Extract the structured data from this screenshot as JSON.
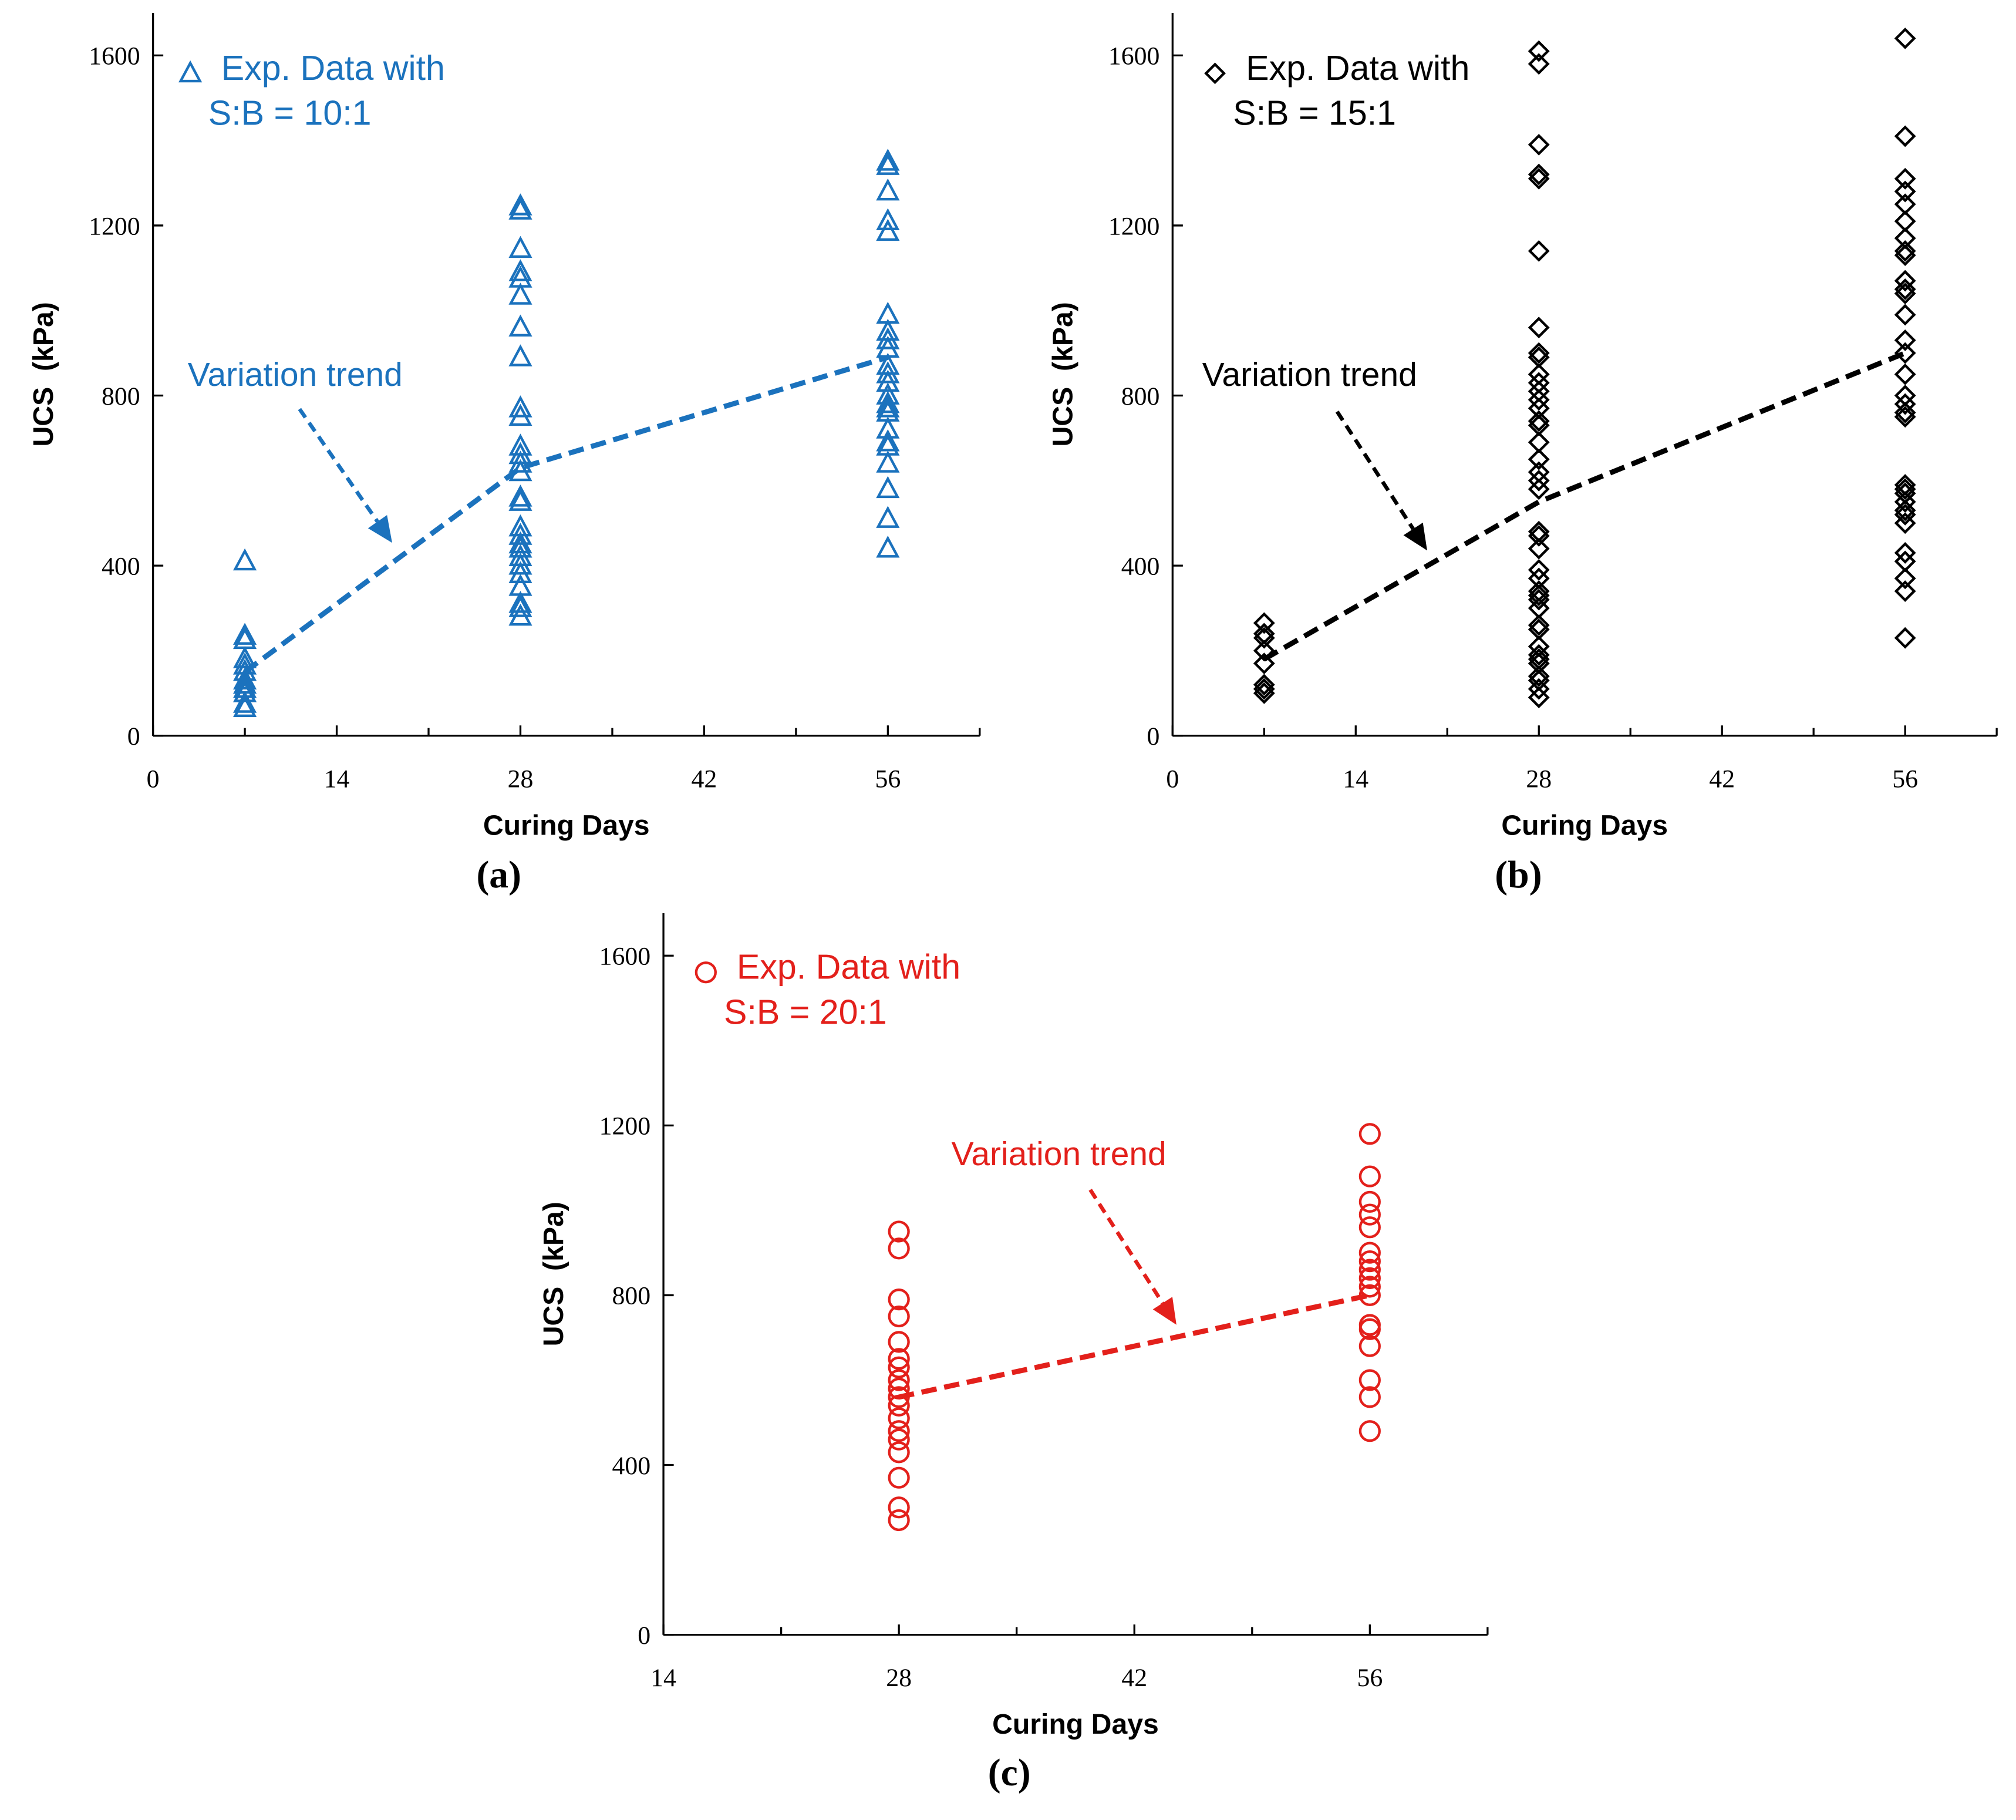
{
  "chart_data": [
    {
      "type": "scatter",
      "caption": "(a)",
      "xlabel": "Curing Days",
      "ylabel": "UCS  (kPa)",
      "xlim": [
        0,
        63
      ],
      "ylim": [
        0,
        1700
      ],
      "xticks": [
        0,
        14,
        28,
        42,
        56
      ],
      "xminorticks": [
        7,
        21,
        35,
        49,
        63
      ],
      "yticks": [
        0,
        400,
        800,
        1200,
        1600
      ],
      "series": [
        {
          "name": "Exp. Data with S:B = 10:1",
          "color": "#1b72bd",
          "marker": "triangle",
          "x": [
            7,
            7,
            7,
            7,
            7,
            7,
            7,
            7,
            7,
            7,
            7,
            7,
            28,
            28,
            28,
            28,
            28,
            28,
            28,
            28,
            28,
            28,
            28,
            28,
            28,
            28,
            28,
            28,
            28,
            28,
            28,
            28,
            28,
            28,
            28,
            28,
            28,
            28,
            28,
            56,
            56,
            56,
            56,
            56,
            56,
            56,
            56,
            56,
            56,
            56,
            56,
            56,
            56,
            56,
            56,
            56,
            56,
            56,
            56,
            56,
            56,
            56
          ],
          "values": [
            410,
            235,
            225,
            180,
            165,
            150,
            130,
            120,
            110,
            100,
            75,
            65,
            1245,
            1235,
            1145,
            1090,
            1075,
            1035,
            960,
            890,
            770,
            750,
            680,
            660,
            640,
            620,
            560,
            550,
            490,
            470,
            450,
            440,
            420,
            400,
            380,
            350,
            310,
            300,
            280,
            1350,
            1340,
            1280,
            1210,
            1185,
            990,
            950,
            930,
            910,
            870,
            850,
            830,
            800,
            780,
            770,
            760,
            720,
            690,
            680,
            640,
            580,
            510,
            440
          ]
        }
      ],
      "trend": {
        "color": "#1b72bd",
        "x": [
          7,
          28,
          56
        ],
        "values": [
          150,
          630,
          890
        ]
      },
      "annotation": "Variation trend"
    },
    {
      "type": "scatter",
      "caption": "(b)",
      "xlabel": "Curing Days",
      "ylabel": "UCS  (kPa)",
      "xlim": [
        0,
        63
      ],
      "ylim": [
        0,
        1700
      ],
      "xticks": [
        0,
        14,
        28,
        42,
        56
      ],
      "xminorticks": [
        7,
        21,
        35,
        49,
        63
      ],
      "yticks": [
        0,
        400,
        800,
        1200,
        1600
      ],
      "series": [
        {
          "name": "Exp. Data with S:B = 15:1",
          "color": "#000000",
          "marker": "diamond",
          "x": [
            7,
            7,
            7,
            7,
            7,
            7,
            7,
            7,
            28,
            28,
            28,
            28,
            28,
            28,
            28,
            28,
            28,
            28,
            28,
            28,
            28,
            28,
            28,
            28,
            28,
            28,
            28,
            28,
            28,
            28,
            28,
            28,
            28,
            28,
            28,
            28,
            28,
            28,
            28,
            28,
            28,
            28,
            28,
            28,
            28,
            28,
            28,
            28,
            56,
            56,
            56,
            56,
            56,
            56,
            56,
            56,
            56,
            56,
            56,
            56,
            56,
            56,
            56,
            56,
            56,
            56,
            56,
            56,
            56,
            56,
            56,
            56,
            56,
            56,
            56,
            56,
            56,
            56,
            56,
            56
          ],
          "values": [
            265,
            240,
            230,
            200,
            170,
            120,
            110,
            100,
            1610,
            1580,
            1390,
            1320,
            1310,
            1140,
            960,
            900,
            890,
            850,
            830,
            810,
            790,
            770,
            740,
            730,
            690,
            650,
            620,
            600,
            580,
            480,
            470,
            440,
            390,
            370,
            340,
            330,
            320,
            300,
            260,
            250,
            210,
            190,
            180,
            170,
            140,
            130,
            110,
            90,
            1640,
            1410,
            1310,
            1280,
            1250,
            1210,
            1170,
            1140,
            1130,
            1070,
            1050,
            1040,
            990,
            930,
            900,
            850,
            800,
            780,
            760,
            750,
            590,
            580,
            570,
            550,
            530,
            520,
            500,
            430,
            410,
            370,
            340,
            230
          ]
        }
      ],
      "trend": {
        "color": "#000000",
        "x": [
          7,
          28,
          56
        ],
        "values": [
          180,
          550,
          900
        ]
      },
      "annotation": "Variation trend"
    },
    {
      "type": "scatter",
      "caption": "(c)",
      "xlabel": "Curing Days",
      "ylabel": "UCS  (kPa)",
      "xlim": [
        14,
        63
      ],
      "ylim": [
        0,
        1700
      ],
      "xticks": [
        14,
        28,
        42,
        56
      ],
      "xminorticks": [
        21,
        35,
        49,
        63
      ],
      "yticks": [
        0,
        400,
        800,
        1200,
        1600
      ],
      "series": [
        {
          "name": "Exp. Data with S:B = 20:1",
          "color": "#e3201b",
          "marker": "circle",
          "x": [
            28,
            28,
            28,
            28,
            28,
            28,
            28,
            28,
            28,
            28,
            28,
            28,
            28,
            28,
            28,
            28,
            28,
            28,
            56,
            56,
            56,
            56,
            56,
            56,
            56,
            56,
            56,
            56,
            56,
            56,
            56,
            56,
            56,
            56,
            56
          ],
          "values": [
            950,
            910,
            790,
            750,
            690,
            650,
            630,
            600,
            580,
            560,
            540,
            510,
            480,
            460,
            430,
            370,
            300,
            270,
            1180,
            1080,
            1020,
            990,
            960,
            900,
            880,
            860,
            840,
            820,
            800,
            730,
            720,
            680,
            600,
            560,
            480
          ]
        }
      ],
      "trend": {
        "color": "#e3201b",
        "x": [
          28,
          56
        ],
        "values": [
          560,
          800
        ]
      },
      "annotation": "Variation trend"
    }
  ]
}
